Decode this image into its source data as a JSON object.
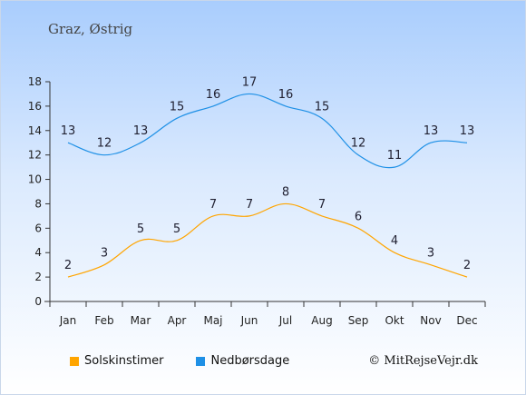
{
  "title": "Graz, Østrig",
  "credit": "© MitRejseVejr.dk",
  "colors": {
    "sunshine": "#ffa500",
    "rain": "#1e90e6",
    "axis": "#333333"
  },
  "chart_data": {
    "type": "line",
    "categories": [
      "Jan",
      "Feb",
      "Mar",
      "Apr",
      "Maj",
      "Jun",
      "Jul",
      "Aug",
      "Sep",
      "Okt",
      "Nov",
      "Dec"
    ],
    "series": [
      {
        "name": "Solskinstimer",
        "color": "#ffa500",
        "values": [
          2,
          3,
          5,
          5,
          7,
          7,
          8,
          7,
          6,
          4,
          3,
          2
        ]
      },
      {
        "name": "Nedbørsdage",
        "color": "#1e90e6",
        "values": [
          13,
          12,
          13,
          15,
          16,
          17,
          16,
          15,
          12,
          11,
          13,
          13
        ]
      }
    ],
    "yticks": [
      0,
      2,
      4,
      6,
      8,
      10,
      12,
      14,
      16,
      18
    ],
    "ylim": [
      0,
      18
    ],
    "grid": false,
    "legend": "bottom-left"
  }
}
